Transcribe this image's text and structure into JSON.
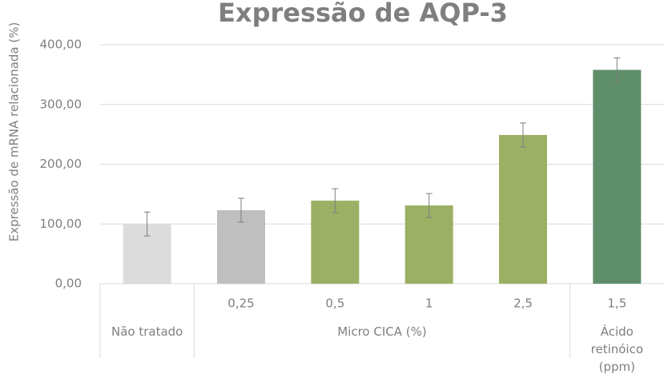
{
  "chart_data": {
    "type": "bar",
    "title": "Expressão de AQP-3",
    "y_label": "Expressão de mRNA relacionada (%)",
    "categories": [
      null,
      "0,25",
      "0,5",
      "1",
      "2,5",
      "1,5"
    ],
    "groups": [
      "Não tratado",
      "Micro CICA (%)",
      "Ácido retinóico (ppm)"
    ],
    "group_sizes": [
      1,
      4,
      1
    ],
    "values": [
      100,
      123,
      139,
      131,
      249,
      358
    ],
    "errors": [
      20,
      20,
      20,
      20,
      20,
      20
    ],
    "colors": [
      "#dcdcdc",
      "#bfbfbf",
      "#9bb064",
      "#9bb064",
      "#9bb064",
      "#5f8f6a"
    ],
    "ylim": [
      0,
      400
    ],
    "yticks": [
      {
        "value": 0,
        "label": "0,00"
      },
      {
        "value": 100,
        "label": "100,00"
      },
      {
        "value": 200,
        "label": "200,00"
      },
      {
        "value": 300,
        "label": "300,00"
      },
      {
        "value": 400,
        "label": "400,00"
      }
    ],
    "grid": true
  }
}
